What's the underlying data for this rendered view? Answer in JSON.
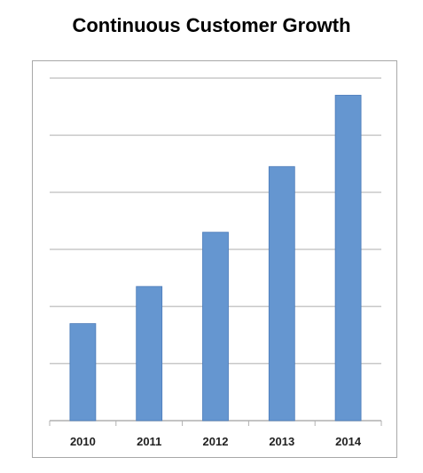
{
  "chart_data": {
    "type": "bar",
    "title": "Continuous Customer Growth",
    "categories": [
      "2010",
      "2011",
      "2012",
      "2013",
      "2014"
    ],
    "values": [
      1.7,
      2.35,
      3.3,
      4.45,
      5.7
    ],
    "ylim": [
      0,
      6
    ],
    "y_gridlines": [
      0,
      1,
      2,
      3,
      4,
      5,
      6
    ],
    "y_tick_labels_shown": false,
    "grid": true,
    "legend": "none",
    "bar_color": "#6596d0",
    "bar_edge_color": "#4a7ab8",
    "gridline_color": "#c8c8c8",
    "frame_color": "#a8a8a8"
  }
}
